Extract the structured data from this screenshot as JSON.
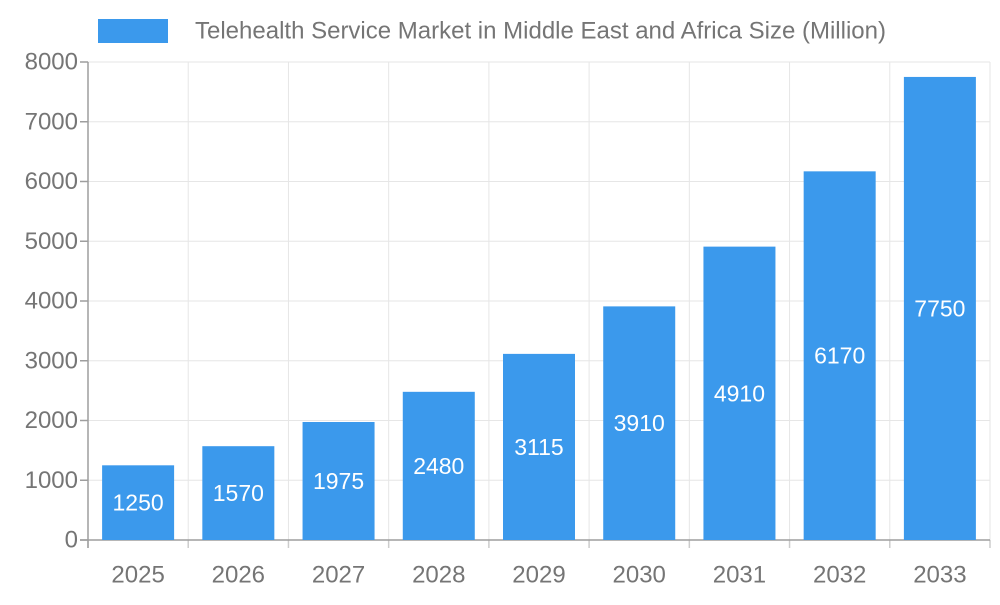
{
  "chart_data": {
    "type": "bar",
    "title": "Telehealth Service Market in Middle East and Africa Size (Million)",
    "categories": [
      "2025",
      "2026",
      "2027",
      "2028",
      "2029",
      "2030",
      "2031",
      "2032",
      "2033"
    ],
    "values": [
      1250,
      1570,
      1975,
      2480,
      3115,
      3910,
      4910,
      6170,
      7750
    ],
    "xlabel": "",
    "ylabel": "",
    "ylim": [
      0,
      8000
    ],
    "ytick_step": 1000,
    "grid": true,
    "legend_position": "top",
    "colors": {
      "bar": "#3B99EC",
      "grid": "#e6e6e6",
      "axis": "#9e9e9e",
      "x_tick": "#cccccc",
      "text": "#757575",
      "bar_label": "#ffffff",
      "background": "#ffffff"
    }
  }
}
